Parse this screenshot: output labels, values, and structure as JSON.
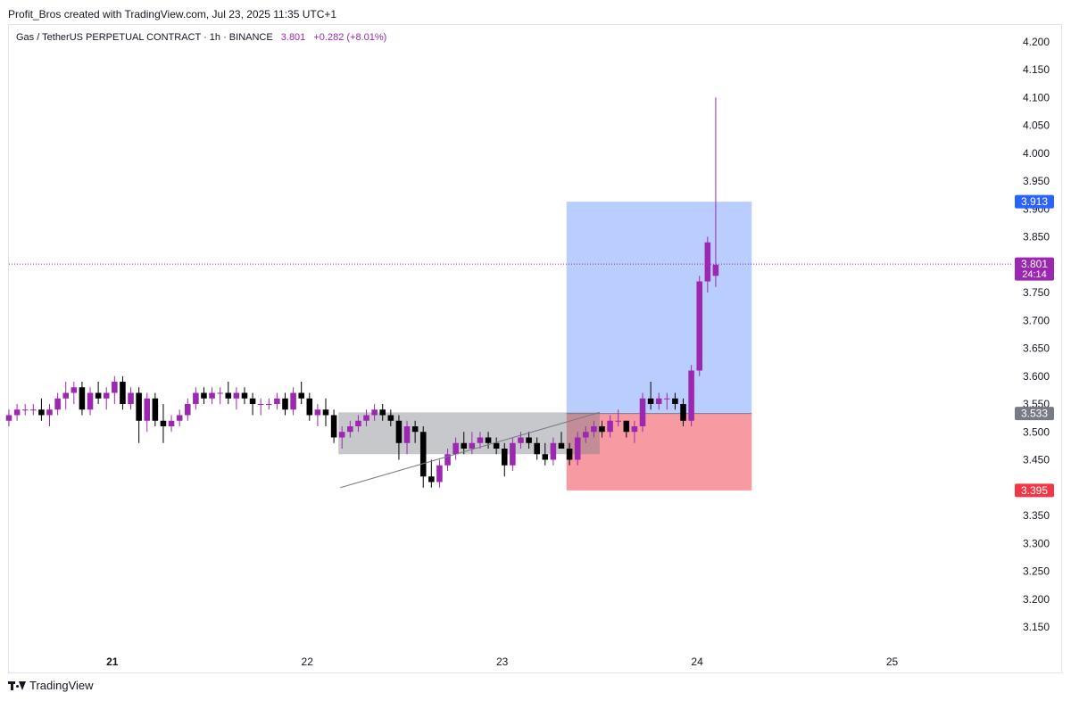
{
  "header": {
    "text": "Profit_Bros created with TradingView.com, Jul 23, 2025 11:35 UTC+1"
  },
  "symbol": {
    "name": "Gas / TetherUS PERPETUAL CONTRACT · 1h · BINANCE",
    "last": "3.801",
    "change": "+0.282 (+8.01%)"
  },
  "footer": {
    "brand": "TradingView"
  },
  "colors": {
    "bull": "#9c27b0",
    "bear": "#000000",
    "target": "#2962ff",
    "stop": "#f23645",
    "entry": "#787b86"
  },
  "chart_data": {
    "type": "candlestick",
    "ylim": [
      3.11,
      4.23
    ],
    "yticks": [
      4.2,
      4.15,
      4.1,
      4.05,
      4.0,
      3.95,
      3.9,
      3.85,
      3.8,
      3.75,
      3.7,
      3.65,
      3.6,
      3.55,
      3.5,
      3.45,
      3.4,
      3.35,
      3.3,
      3.25,
      3.2,
      3.15
    ],
    "ytick_labels": [
      "4.200",
      "4.150",
      "4.100",
      "4.050",
      "4.000",
      "3.950",
      "3.900",
      "3.850",
      "3.800",
      "3.750",
      "3.700",
      "3.650",
      "3.600",
      "3.550",
      "3.500",
      "3.450",
      "3.400",
      "3.350",
      "3.300",
      "3.250",
      "3.200",
      "3.150"
    ],
    "xlim": [
      20.47,
      25.62
    ],
    "xticks": [
      21,
      22,
      23,
      24,
      25
    ],
    "xtick_labels": [
      "21",
      "22",
      "23",
      "24",
      "25"
    ],
    "candle_start_day": 20.47,
    "candle_interval_days": 0.04167,
    "candles": [
      [
        3.52,
        3.54,
        3.51,
        3.53
      ],
      [
        3.53,
        3.55,
        3.52,
        3.54
      ],
      [
        3.54,
        3.55,
        3.53,
        3.54
      ],
      [
        3.54,
        3.55,
        3.53,
        3.54
      ],
      [
        3.54,
        3.56,
        3.52,
        3.53
      ],
      [
        3.53,
        3.55,
        3.51,
        3.54
      ],
      [
        3.54,
        3.57,
        3.53,
        3.56
      ],
      [
        3.56,
        3.59,
        3.54,
        3.57
      ],
      [
        3.57,
        3.59,
        3.55,
        3.58
      ],
      [
        3.58,
        3.59,
        3.53,
        3.54
      ],
      [
        3.54,
        3.58,
        3.53,
        3.57
      ],
      [
        3.57,
        3.59,
        3.55,
        3.56
      ],
      [
        3.56,
        3.58,
        3.54,
        3.57
      ],
      [
        3.57,
        3.6,
        3.55,
        3.59
      ],
      [
        3.59,
        3.6,
        3.54,
        3.55
      ],
      [
        3.55,
        3.58,
        3.54,
        3.57
      ],
      [
        3.57,
        3.58,
        3.48,
        3.52
      ],
      [
        3.52,
        3.57,
        3.5,
        3.56
      ],
      [
        3.56,
        3.57,
        3.51,
        3.52
      ],
      [
        3.52,
        3.55,
        3.48,
        3.51
      ],
      [
        3.51,
        3.53,
        3.5,
        3.52
      ],
      [
        3.52,
        3.54,
        3.51,
        3.53
      ],
      [
        3.53,
        3.56,
        3.52,
        3.55
      ],
      [
        3.55,
        3.58,
        3.54,
        3.57
      ],
      [
        3.57,
        3.58,
        3.55,
        3.56
      ],
      [
        3.56,
        3.58,
        3.55,
        3.57
      ],
      [
        3.57,
        3.58,
        3.55,
        3.57
      ],
      [
        3.57,
        3.59,
        3.55,
        3.56
      ],
      [
        3.56,
        3.58,
        3.54,
        3.57
      ],
      [
        3.57,
        3.58,
        3.55,
        3.56
      ],
      [
        3.56,
        3.57,
        3.53,
        3.55
      ],
      [
        3.55,
        3.56,
        3.53,
        3.55
      ],
      [
        3.55,
        3.56,
        3.54,
        3.55
      ],
      [
        3.55,
        3.57,
        3.54,
        3.56
      ],
      [
        3.56,
        3.57,
        3.53,
        3.54
      ],
      [
        3.54,
        3.58,
        3.53,
        3.57
      ],
      [
        3.57,
        3.59,
        3.55,
        3.56
      ],
      [
        3.56,
        3.57,
        3.52,
        3.53
      ],
      [
        3.53,
        3.55,
        3.51,
        3.54
      ],
      [
        3.54,
        3.56,
        3.51,
        3.53
      ],
      [
        3.53,
        3.54,
        3.48,
        3.49
      ],
      [
        3.49,
        3.51,
        3.47,
        3.5
      ],
      [
        3.5,
        3.52,
        3.49,
        3.51
      ],
      [
        3.51,
        3.53,
        3.5,
        3.52
      ],
      [
        3.52,
        3.54,
        3.51,
        3.53
      ],
      [
        3.53,
        3.55,
        3.52,
        3.54
      ],
      [
        3.54,
        3.55,
        3.52,
        3.53
      ],
      [
        3.53,
        3.54,
        3.51,
        3.52
      ],
      [
        3.52,
        3.53,
        3.45,
        3.48
      ],
      [
        3.48,
        3.52,
        3.46,
        3.51
      ],
      [
        3.51,
        3.52,
        3.48,
        3.5
      ],
      [
        3.5,
        3.51,
        3.4,
        3.42
      ],
      [
        3.42,
        3.45,
        3.4,
        3.41
      ],
      [
        3.41,
        3.45,
        3.4,
        3.44
      ],
      [
        3.44,
        3.47,
        3.43,
        3.46
      ],
      [
        3.46,
        3.49,
        3.45,
        3.48
      ],
      [
        3.48,
        3.5,
        3.46,
        3.47
      ],
      [
        3.47,
        3.5,
        3.46,
        3.48
      ],
      [
        3.48,
        3.5,
        3.47,
        3.49
      ],
      [
        3.49,
        3.5,
        3.47,
        3.48
      ],
      [
        3.48,
        3.49,
        3.46,
        3.47
      ],
      [
        3.47,
        3.48,
        3.42,
        3.44
      ],
      [
        3.44,
        3.49,
        3.43,
        3.48
      ],
      [
        3.48,
        3.5,
        3.47,
        3.49
      ],
      [
        3.49,
        3.5,
        3.47,
        3.48
      ],
      [
        3.48,
        3.49,
        3.45,
        3.46
      ],
      [
        3.46,
        3.48,
        3.44,
        3.45
      ],
      [
        3.45,
        3.49,
        3.44,
        3.48
      ],
      [
        3.48,
        3.5,
        3.47,
        3.47
      ],
      [
        3.47,
        3.48,
        3.44,
        3.45
      ],
      [
        3.45,
        3.5,
        3.44,
        3.49
      ],
      [
        3.49,
        3.51,
        3.48,
        3.5
      ],
      [
        3.5,
        3.52,
        3.49,
        3.51
      ],
      [
        3.51,
        3.52,
        3.49,
        3.5
      ],
      [
        3.5,
        3.53,
        3.49,
        3.52
      ],
      [
        3.52,
        3.54,
        3.51,
        3.52
      ],
      [
        3.52,
        3.52,
        3.49,
        3.5
      ],
      [
        3.5,
        3.52,
        3.48,
        3.51
      ],
      [
        3.51,
        3.57,
        3.5,
        3.56
      ],
      [
        3.56,
        3.59,
        3.54,
        3.55
      ],
      [
        3.55,
        3.57,
        3.54,
        3.56
      ],
      [
        3.56,
        3.57,
        3.54,
        3.56
      ],
      [
        3.56,
        3.57,
        3.54,
        3.55
      ],
      [
        3.55,
        3.56,
        3.51,
        3.52
      ],
      [
        3.52,
        3.62,
        3.51,
        3.61
      ],
      [
        3.61,
        3.78,
        3.6,
        3.77
      ],
      [
        3.77,
        3.85,
        3.75,
        3.84
      ],
      [
        3.78,
        4.1,
        3.76,
        3.8
      ]
    ],
    "annotations": [
      {
        "type": "long-position",
        "target": 3.913,
        "entry": 3.533,
        "stop": 3.395,
        "x_start": 23.33,
        "x_end": 24.28
      },
      {
        "type": "range-box",
        "top": 3.535,
        "bottom": 3.46,
        "x_start": 22.16,
        "x_end": 23.5
      },
      {
        "type": "trend-line",
        "from": [
          22.17,
          3.4
        ],
        "to": [
          23.5,
          3.535
        ]
      }
    ],
    "price_labels": [
      {
        "label": "3.913",
        "value": 3.913,
        "role": "target"
      },
      {
        "label": "3.801",
        "sub": "24:14",
        "value": 3.801,
        "role": "last"
      },
      {
        "label": "3.533",
        "value": 3.533,
        "role": "entry"
      },
      {
        "label": "3.395",
        "value": 3.395,
        "role": "stop"
      }
    ]
  }
}
